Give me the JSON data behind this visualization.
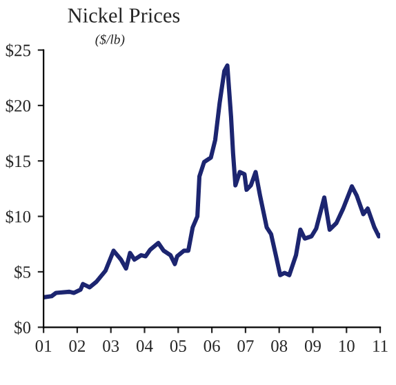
{
  "chart_data": {
    "type": "line",
    "title": "Nickel Prices",
    "subtitle": "($/lb)",
    "xlim": [
      2001,
      2011
    ],
    "ylim": [
      0,
      25
    ],
    "xticks": [
      {
        "value": 2001,
        "label": "01"
      },
      {
        "value": 2002,
        "label": "02"
      },
      {
        "value": 2003,
        "label": "03"
      },
      {
        "value": 2004,
        "label": "04"
      },
      {
        "value": 2005,
        "label": "05"
      },
      {
        "value": 2006,
        "label": "06"
      },
      {
        "value": 2007,
        "label": "07"
      },
      {
        "value": 2008,
        "label": "08"
      },
      {
        "value": 2009,
        "label": "09"
      },
      {
        "value": 2010,
        "label": "10"
      },
      {
        "value": 2011,
        "label": "11"
      }
    ],
    "yticks": [
      {
        "value": 0,
        "label": "$0"
      },
      {
        "value": 5,
        "label": "$5"
      },
      {
        "value": 10,
        "label": "$10"
      },
      {
        "value": 15,
        "label": "$15"
      },
      {
        "value": 20,
        "label": "$20"
      },
      {
        "value": 25,
        "label": "$25"
      }
    ],
    "grid": false,
    "marker": "none",
    "line_style": "solid",
    "series": [
      {
        "color": "#1c2570",
        "x": [
          2001.0,
          2001.24,
          2001.37,
          2001.77,
          2001.9,
          2002.1,
          2002.17,
          2002.37,
          2002.57,
          2002.84,
          2003.08,
          2003.3,
          2003.45,
          2003.57,
          2003.7,
          2003.9,
          2004.03,
          2004.17,
          2004.41,
          2004.57,
          2004.77,
          2004.9,
          2004.97,
          2005.17,
          2005.3,
          2005.43,
          2005.57,
          2005.63,
          2005.77,
          2005.97,
          2006.1,
          2006.23,
          2006.37,
          2006.46,
          2006.57,
          2006.63,
          2006.7,
          2006.83,
          2006.97,
          2007.03,
          2007.16,
          2007.3,
          2007.43,
          2007.63,
          2007.76,
          2007.9,
          2008.03,
          2008.16,
          2008.3,
          2008.5,
          2008.63,
          2008.76,
          2008.96,
          2009.1,
          2009.34,
          2009.5,
          2009.7,
          2009.9,
          2010.16,
          2010.3,
          2010.5,
          2010.63,
          2010.83,
          2010.96,
          2011.0
        ],
        "values": [
          2.7,
          2.8,
          3.1,
          3.2,
          3.1,
          3.4,
          3.9,
          3.6,
          4.1,
          5.1,
          6.9,
          6.1,
          5.3,
          6.7,
          6.1,
          6.5,
          6.4,
          7.0,
          7.6,
          6.9,
          6.5,
          5.7,
          6.4,
          6.9,
          6.9,
          9.0,
          10.0,
          13.6,
          14.9,
          15.3,
          16.9,
          20.2,
          23.1,
          23.6,
          19.0,
          15.7,
          12.8,
          14.0,
          13.8,
          12.4,
          12.8,
          14.0,
          11.9,
          9.0,
          8.4,
          6.5,
          4.7,
          4.9,
          4.7,
          6.5,
          8.8,
          8.0,
          8.2,
          8.9,
          11.7,
          8.8,
          9.4,
          10.7,
          12.7,
          11.9,
          10.2,
          10.7,
          9.0,
          8.2,
          8.3
        ]
      }
    ]
  }
}
